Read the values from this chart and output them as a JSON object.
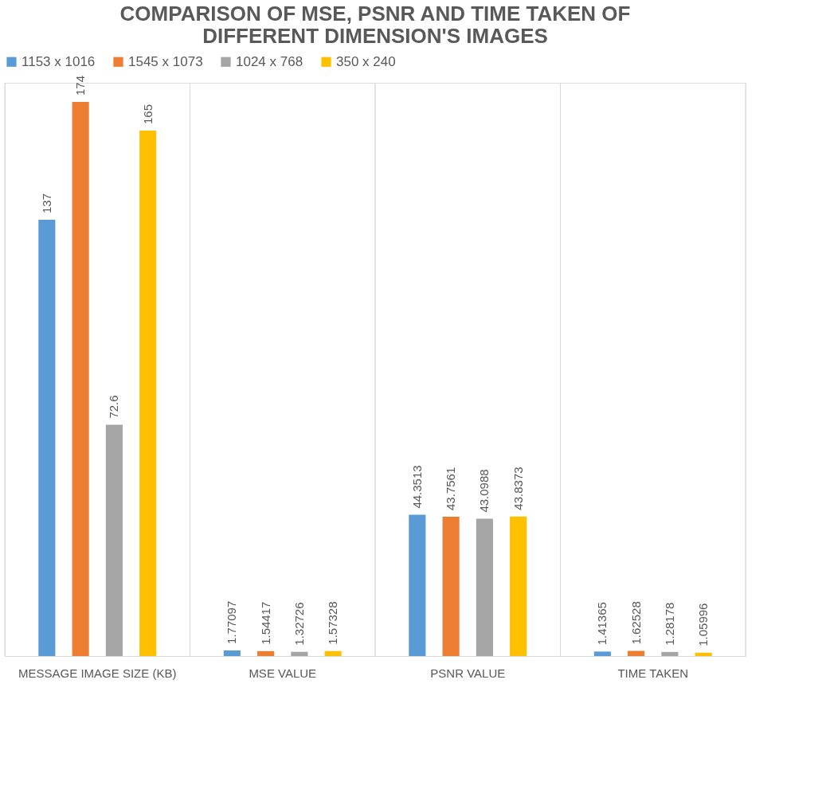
{
  "chart_data": {
    "type": "bar",
    "title": "COMPARISON OF MSE, PSNR AND TIME TAKEN OF DIFFERENT DIMENSION'S IMAGES",
    "categories": [
      "MESSAGE IMAGE SIZE (KB)",
      "MSE VALUE",
      "PSNR VALUE",
      "TIME TAKEN"
    ],
    "series": [
      {
        "name": "1153 x 1016",
        "color": "#5b9bd5",
        "values": [
          137,
          1.77097,
          44.3513,
          1.41365
        ]
      },
      {
        "name": "1545 x 1073",
        "color": "#ed7d31",
        "values": [
          174,
          1.54417,
          43.7561,
          1.62528
        ]
      },
      {
        "name": "1024 x 768",
        "color": "#a5a5a5",
        "values": [
          72.6,
          1.32726,
          43.0988,
          1.28178
        ]
      },
      {
        "name": "350 x 240",
        "color": "#ffc000",
        "values": [
          165,
          1.57328,
          43.8373,
          1.05996
        ]
      }
    ],
    "data_labels": true,
    "legend": "top",
    "grid": "x"
  }
}
